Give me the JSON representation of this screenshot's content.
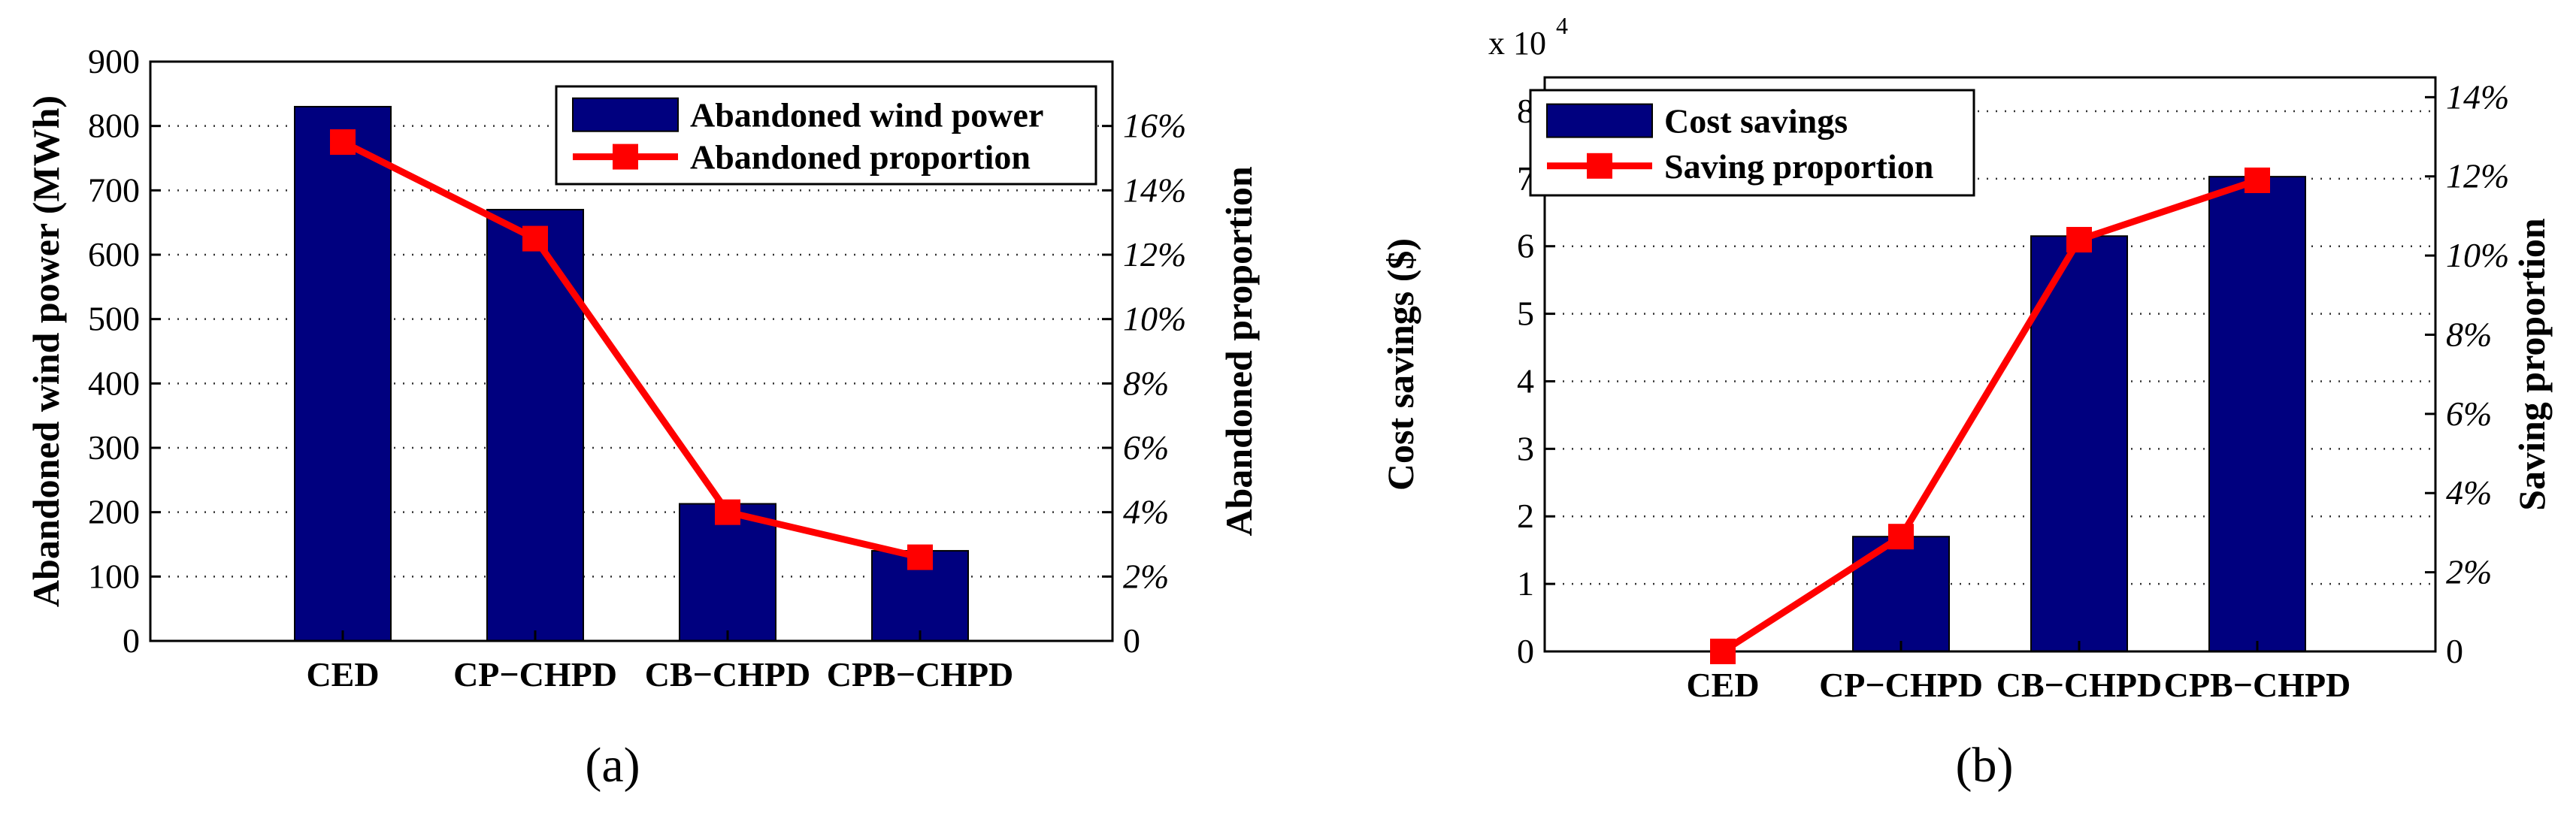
{
  "colors": {
    "bar": "#00007f",
    "line": "#ff0000",
    "grid": "#333333"
  },
  "chart_data": [
    {
      "type": "bar+line",
      "panel_label": "(a)",
      "categories": [
        "CED",
        "CP−CHPD",
        "CB−CHPD",
        "CPB−CHPD"
      ],
      "series": [
        {
          "name": "Abandoned wind power",
          "kind": "bar",
          "axis": "left",
          "values": [
            830,
            670,
            213,
            140
          ]
        },
        {
          "name": "Abandoned proportion",
          "kind": "line",
          "axis": "right",
          "values": [
            15.5,
            12.5,
            4.0,
            2.6
          ]
        }
      ],
      "ylabel_left": "Abandoned wind power (MWh)",
      "ylabel_right": "Abandoned proportion",
      "ylim_left": [
        0,
        900
      ],
      "yticks_left": [
        "0",
        "100",
        "200",
        "300",
        "400",
        "500",
        "600",
        "700",
        "800",
        "900"
      ],
      "ylim_right": [
        0,
        18
      ],
      "yticks_right": [
        "0",
        "2%",
        "4%",
        "6%",
        "8%",
        "10%",
        "12%",
        "14%",
        "16%"
      ],
      "legend_position": "top-right"
    },
    {
      "type": "bar+line",
      "panel_label": "(b)",
      "categories": [
        "CED",
        "CP−CHPD",
        "CB−CHPD",
        "CPB−CHPD"
      ],
      "multiplier": "x 10",
      "multiplier_exp": "4",
      "series": [
        {
          "name": "Cost savings",
          "kind": "bar",
          "axis": "left",
          "values": [
            0,
            1.7,
            6.15,
            7.03
          ]
        },
        {
          "name": "Saving proportion",
          "kind": "line",
          "axis": "right",
          "values": [
            0,
            2.9,
            10.4,
            11.9
          ]
        }
      ],
      "ylabel_left": "Cost savings ($)",
      "ylabel_right": "Saving proportion",
      "ylim_left": [
        0,
        8.5
      ],
      "yticks_left": [
        "0",
        "1",
        "2",
        "3",
        "4",
        "5",
        "6",
        "7",
        "8"
      ],
      "ylim_right": [
        0,
        14.5
      ],
      "yticks_right": [
        "0",
        "2%",
        "4%",
        "6%",
        "8%",
        "10%",
        "12%",
        "14%"
      ],
      "legend_position": "top-left"
    }
  ]
}
